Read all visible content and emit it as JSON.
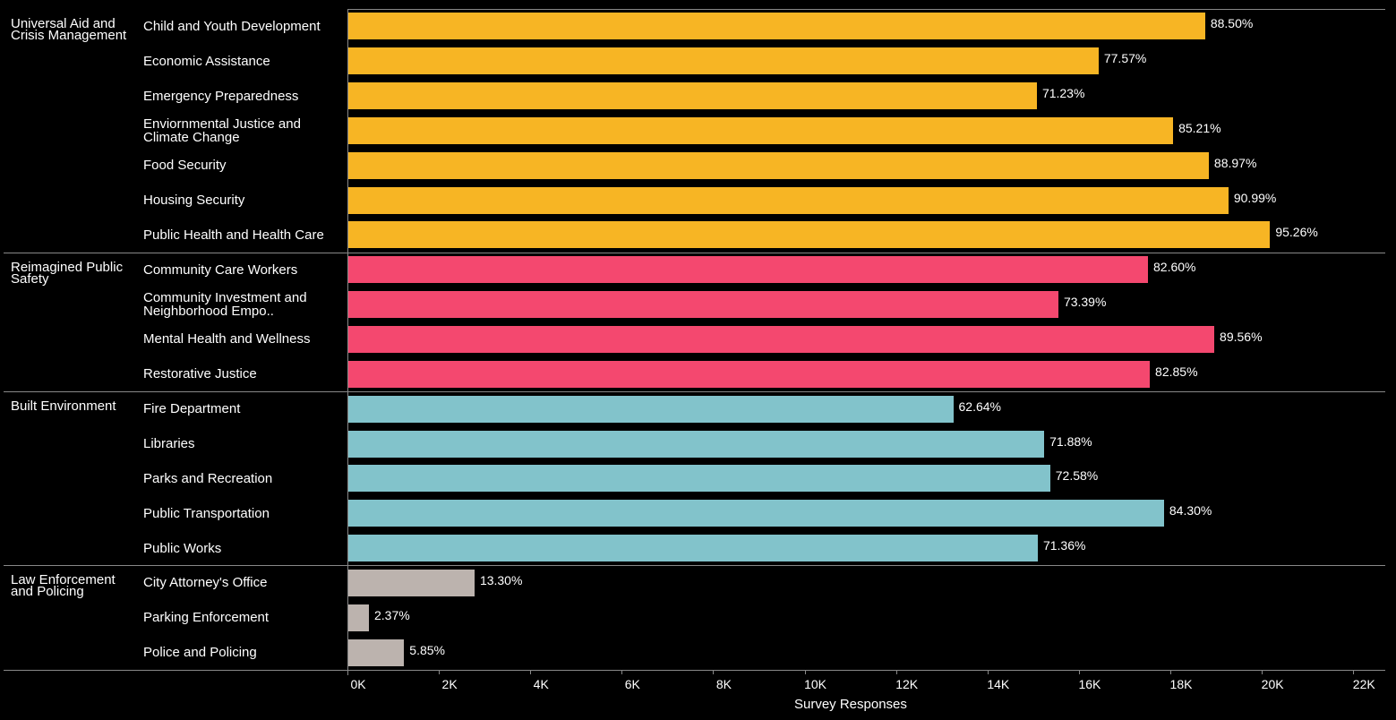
{
  "chart_data": {
    "type": "bar",
    "orientation": "horizontal",
    "x_label": "Survey Responses",
    "xlim": [
      0,
      22700
    ],
    "xticks": [
      {
        "value": 0,
        "label": "0K"
      },
      {
        "value": 2000,
        "label": "2K"
      },
      {
        "value": 4000,
        "label": "4K"
      },
      {
        "value": 6000,
        "label": "6K"
      },
      {
        "value": 8000,
        "label": "8K"
      },
      {
        "value": 10000,
        "label": "10K"
      },
      {
        "value": 12000,
        "label": "12K"
      },
      {
        "value": 14000,
        "label": "14K"
      },
      {
        "value": 16000,
        "label": "16K"
      },
      {
        "value": 18000,
        "label": "18K"
      },
      {
        "value": 20000,
        "label": "20K"
      },
      {
        "value": 22000,
        "label": "22K"
      }
    ],
    "series": [
      {
        "name": "Universal Aid and Crisis Management",
        "color": "#f7b524",
        "categories": [
          "Child and Youth Development",
          "Economic Assistance",
          "Emergency Preparedness",
          "Enviornmental Justice and Climate Change",
          "Food Security",
          "Housing Security",
          "Public Health and Health Care"
        ],
        "values": [
          18760,
          16430,
          15080,
          18060,
          18840,
          19270,
          20180
        ],
        "bar_labels": [
          "88.50%",
          "77.57%",
          "71.23%",
          "85.21%",
          "88.97%",
          "90.99%",
          "95.26%"
        ]
      },
      {
        "name": "Reimagined Public Safety",
        "color": "#f4486f",
        "categories": [
          "Community Care Workers",
          "Community Investment and Neighborhood Empo..",
          "Mental Health and Wellness",
          "Restorative Justice"
        ],
        "values": [
          17510,
          15550,
          18960,
          17550
        ],
        "bar_labels": [
          "82.60%",
          "73.39%",
          "89.56%",
          "82.85%"
        ]
      },
      {
        "name": "Built Environment",
        "color": "#82c3cb",
        "categories": [
          "Fire Department",
          "Libraries",
          "Parks and Recreation",
          "Public Transportation",
          "Public Works"
        ],
        "values": [
          13250,
          15240,
          15370,
          17860,
          15100
        ],
        "bar_labels": [
          "62.64%",
          "71.88%",
          "72.58%",
          "84.30%",
          "71.36%"
        ]
      },
      {
        "name": "Law Enforcement and Policing",
        "color": "#bcb3ae",
        "categories": [
          "City Attorney's Office",
          "Parking Enforcement",
          "Police and Policing"
        ],
        "values": [
          2780,
          470,
          1240
        ],
        "bar_labels": [
          "13.30%",
          "2.37%",
          "5.85%"
        ]
      }
    ]
  }
}
